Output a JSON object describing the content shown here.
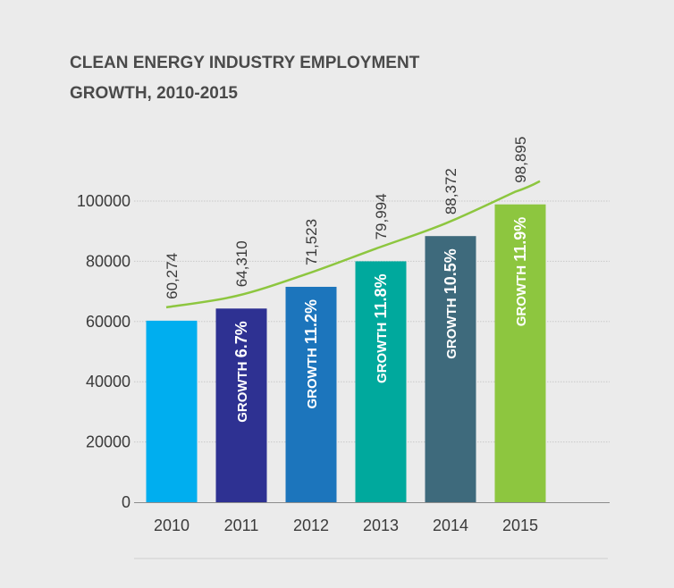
{
  "chart_data": {
    "type": "bar",
    "title_lines": [
      "CLEAN ENERGY INDUSTRY EMPLOYMENT",
      "GROWTH, 2010-2015"
    ],
    "categories": [
      "2010",
      "2011",
      "2012",
      "2013",
      "2014",
      "2015"
    ],
    "values": [
      60274,
      64310,
      71523,
      79994,
      88372,
      98895
    ],
    "value_labels": [
      "60,274",
      "64,310",
      "71,523",
      "79,994",
      "88,372",
      "98,895"
    ],
    "growth_prefix": "GROWTH",
    "growth_labels": [
      "",
      "6.7%",
      "11.2%",
      "11.8%",
      "10.5%",
      "11.9%"
    ],
    "bar_colors": [
      "#00aeef",
      "#2e3192",
      "#1c75bc",
      "#00a99d",
      "#3e6a7c",
      "#8dc63f"
    ],
    "trend_color": "#8dc63f",
    "yticks": [
      "0",
      "20000",
      "40000",
      "60000",
      "80000",
      "100000"
    ],
    "ylim": [
      0,
      100000
    ],
    "grid": true,
    "xlabel": "",
    "ylabel": ""
  }
}
